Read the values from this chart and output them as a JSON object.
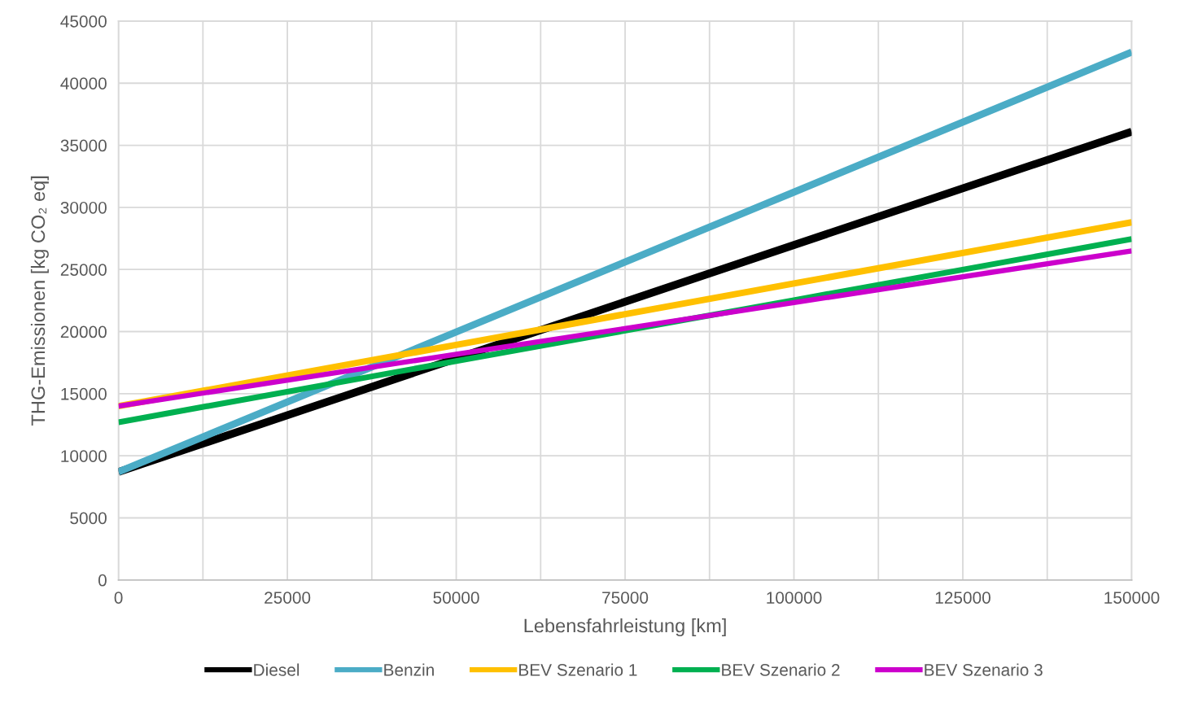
{
  "chart_data": {
    "type": "line",
    "xlabel": "Lebensfahrleistung [km]",
    "ylabel": "THG-Emissionen [kg CO₂ eq]",
    "x": [
      0,
      50000,
      100000,
      150000
    ],
    "series": [
      {
        "name": "Diesel",
        "color": "#000000",
        "values": [
          8700,
          17830,
          26970,
          36100
        ]
      },
      {
        "name": "Benzin",
        "color": "#4bacc6",
        "values": [
          8700,
          19970,
          31230,
          42500
        ]
      },
      {
        "name": "BEV Szenario 1",
        "color": "#ffc000",
        "values": [
          14000,
          18930,
          23870,
          28800
        ]
      },
      {
        "name": "BEV Szenario 2",
        "color": "#00b050",
        "values": [
          12700,
          17620,
          22530,
          27450
        ]
      },
      {
        "name": "BEV Szenario 3",
        "color": "#cc00cc",
        "values": [
          14000,
          18170,
          22330,
          26500
        ]
      }
    ],
    "xlim": [
      0,
      150000
    ],
    "xticks": [
      0,
      {
        "value": 12500,
        "label": null
      },
      25000,
      {
        "value": 37500,
        "label": null
      },
      50000,
      {
        "value": 62500,
        "label": null
      },
      75000,
      {
        "value": 87500,
        "label": null
      },
      100000,
      {
        "value": 112500,
        "label": null
      },
      125000,
      {
        "value": 137500,
        "label": null
      },
      150000
    ],
    "ylim": [
      0,
      45000
    ],
    "yticks": [
      0,
      5000,
      10000,
      15000,
      20000,
      25000,
      30000,
      35000,
      40000,
      45000
    ],
    "grid": true,
    "legend": "bottom",
    "marker": "none",
    "line_style": "solid"
  }
}
